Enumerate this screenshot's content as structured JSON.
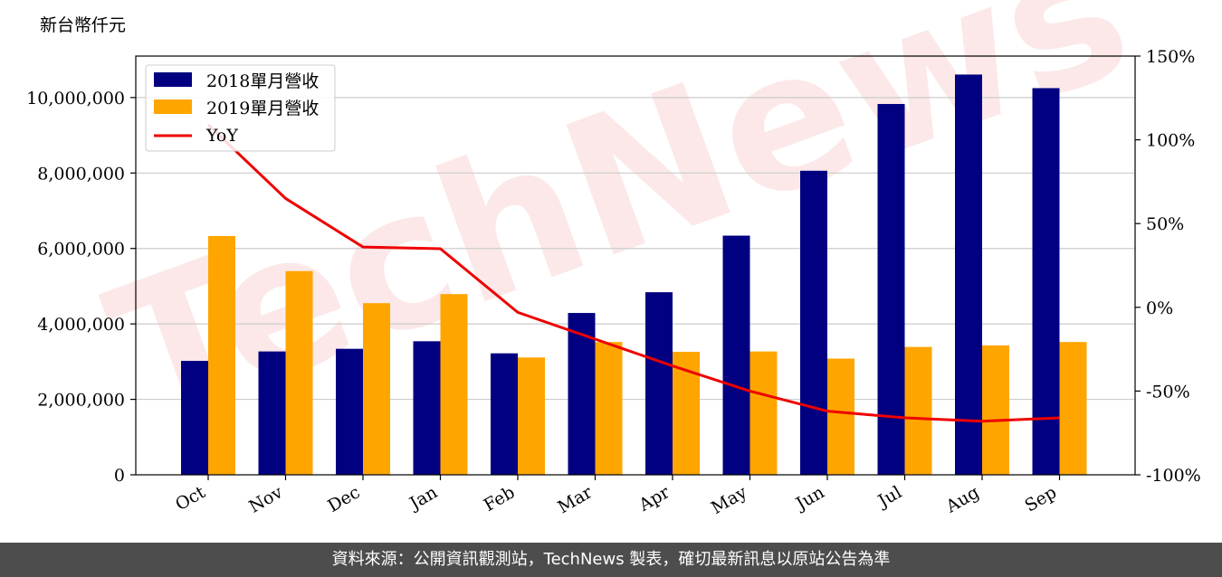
{
  "unit_label": "新台幣仟元",
  "footer_text": "資料來源：公開資訊觀測站，TechNews 製表，確切最新訊息以原站公告為準",
  "watermark_text": "TechNews",
  "colors": {
    "series2018": "#000080",
    "series2019": "#FFA500",
    "yoy": "#EE0000",
    "grid": "#cccccc",
    "footer_bg": "#4d4d4d"
  },
  "chart_data": {
    "type": "bar",
    "categories": [
      "Oct",
      "Nov",
      "Dec",
      "Jan",
      "Feb",
      "Mar",
      "Apr",
      "May",
      "Jun",
      "Jul",
      "Aug",
      "Sep"
    ],
    "series": [
      {
        "name": "2018單月營收",
        "values": [
          3020000,
          3270000,
          3340000,
          3540000,
          3220000,
          4290000,
          4840000,
          6340000,
          8060000,
          9830000,
          10610000,
          10250000
        ]
      },
      {
        "name": "2019單月營收",
        "values": [
          6330000,
          5400000,
          4550000,
          4790000,
          3110000,
          3520000,
          3260000,
          3270000,
          3080000,
          3390000,
          3430000,
          3520000
        ]
      }
    ],
    "line_series": {
      "name": "YoY",
      "axis": "right",
      "values": [
        109,
        65,
        36,
        35,
        -3,
        -19,
        -35,
        -50,
        -62,
        -66,
        -68,
        -66
      ]
    },
    "ylim": [
      0,
      11100000
    ],
    "y_ticks": [
      0,
      2000000,
      4000000,
      6000000,
      8000000,
      10000000
    ],
    "y_tick_labels": [
      "0",
      "2,000,000",
      "4,000,000",
      "6,000,000",
      "8,000,000",
      "10,000,000"
    ],
    "y2lim": [
      -100,
      150
    ],
    "y2_ticks": [
      -100,
      -50,
      0,
      50,
      100,
      150
    ],
    "y2_tick_labels": [
      "-100%",
      "-50%",
      "0%",
      "50%",
      "100%",
      "150%"
    ],
    "grid": true,
    "legend_position": "top-left"
  }
}
